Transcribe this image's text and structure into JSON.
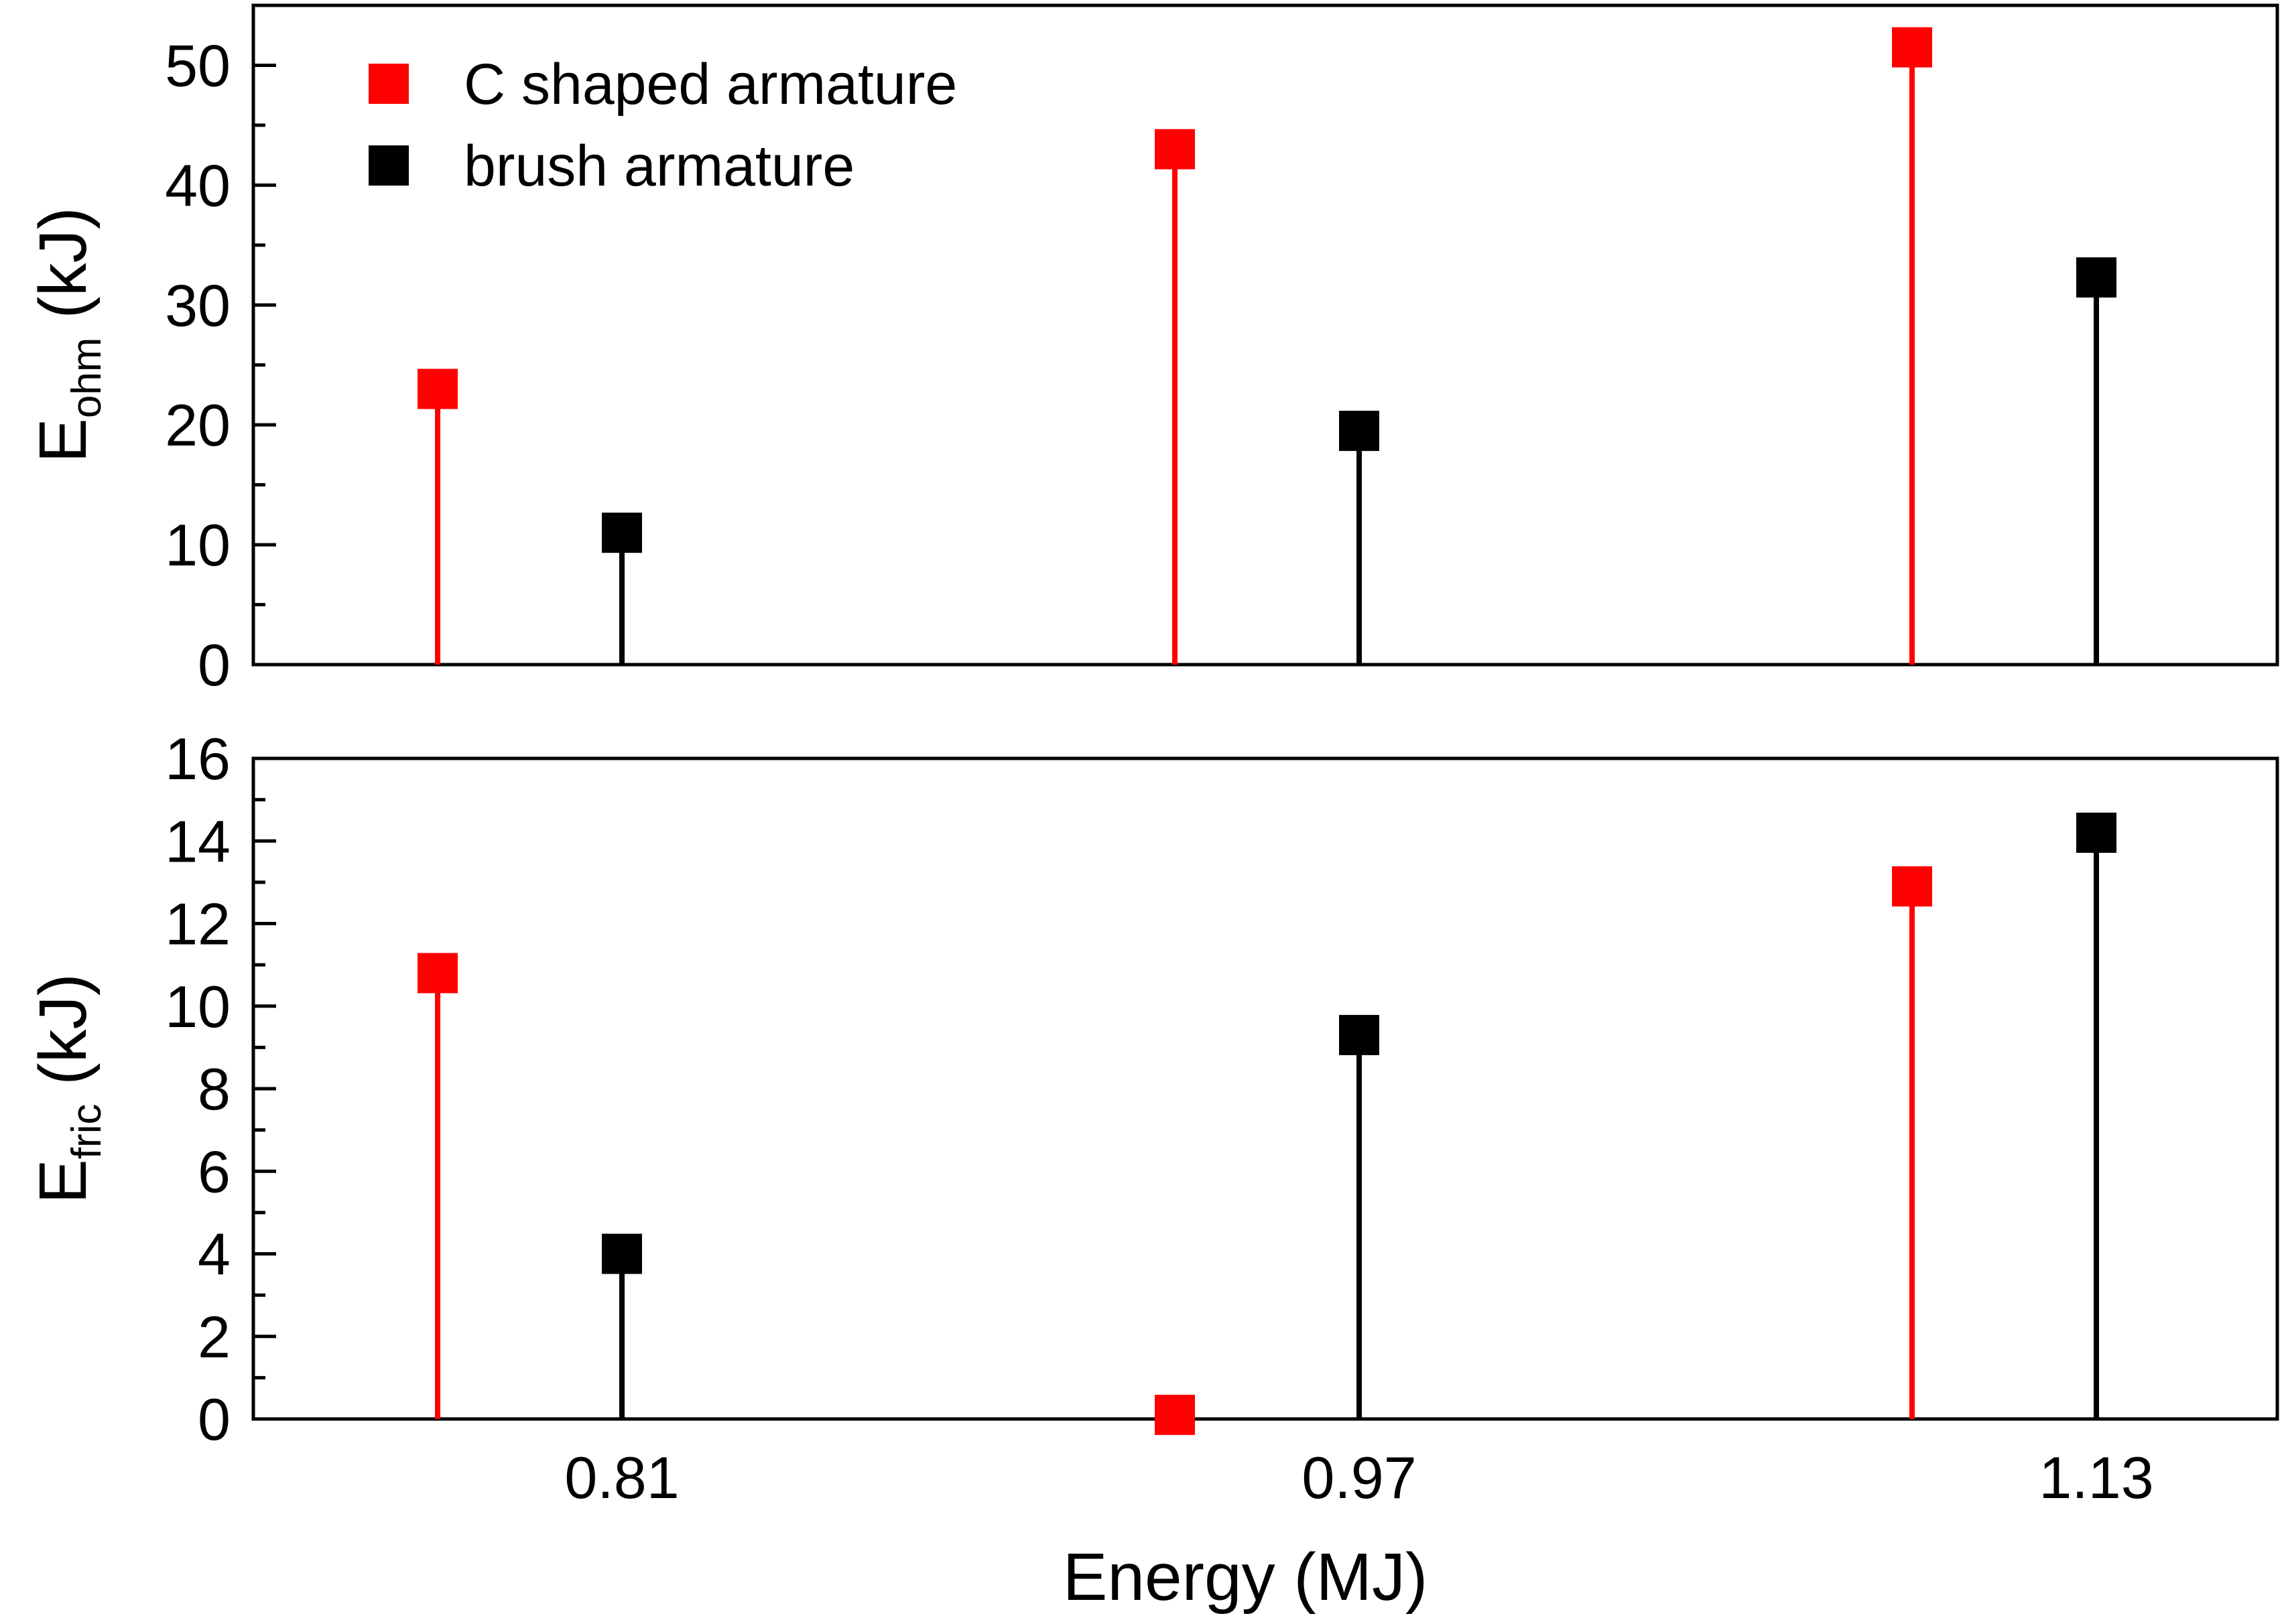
{
  "chart_data": [
    {
      "id": "ohm",
      "type": "stem",
      "categories": [
        "0.81",
        "0.97",
        "1.13"
      ],
      "ylabel_main": "E",
      "ylabel_sub": "ohm",
      "ylabel_unit": "(kJ)",
      "ylim": [
        0,
        55
      ],
      "yticks": [
        0,
        10,
        20,
        30,
        40,
        50
      ],
      "yticks_minor_step": 5,
      "series": [
        {
          "name": "C shaped armature",
          "color": "#ff0000",
          "values": [
            23,
            43,
            51.5
          ]
        },
        {
          "name": "brush armature",
          "color": "#000000",
          "values": [
            11,
            19.5,
            32.3
          ]
        }
      ]
    },
    {
      "id": "fric",
      "type": "stem",
      "categories": [
        "0.81",
        "0.97",
        "1.13"
      ],
      "ylabel_main": "E",
      "ylabel_sub": "fric",
      "ylabel_unit": "(kJ)",
      "xlabel": "Energy (MJ)",
      "ylim": [
        0,
        16
      ],
      "yticks": [
        0,
        2,
        4,
        6,
        8,
        10,
        12,
        14,
        16
      ],
      "yticks_minor_step": 1,
      "series": [
        {
          "name": "C shaped armature",
          "color": "#ff0000",
          "values": [
            10.8,
            0.1,
            12.9
          ]
        },
        {
          "name": "brush armature",
          "color": "#000000",
          "values": [
            4.0,
            9.3,
            14.2
          ]
        }
      ]
    }
  ],
  "legend": {
    "position": "top-left",
    "entries": [
      {
        "label": "C shaped armature",
        "color": "#ff0000"
      },
      {
        "label": "brush armature",
        "color": "#000000"
      }
    ]
  }
}
